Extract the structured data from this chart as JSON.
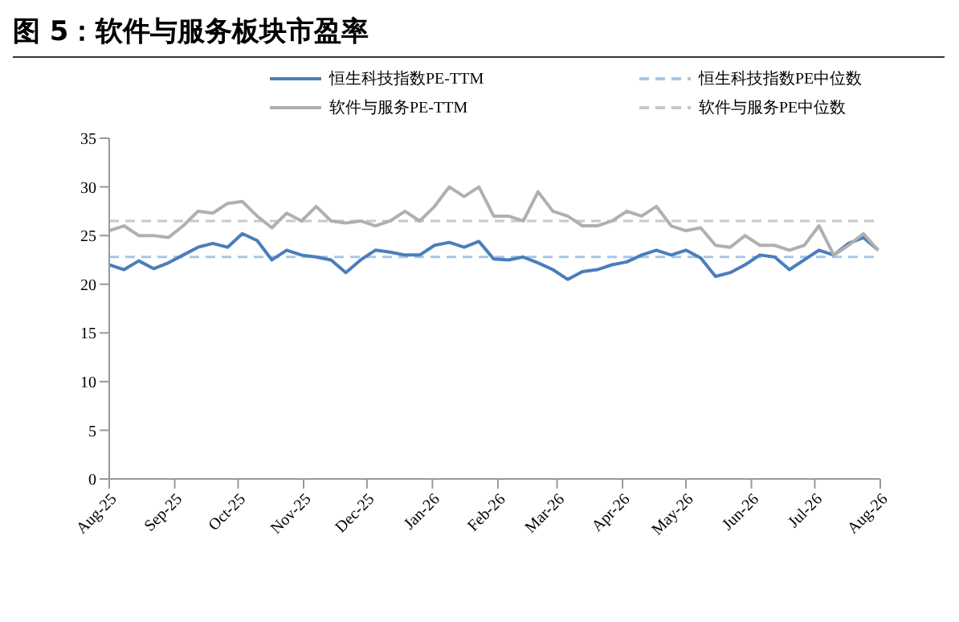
{
  "chart_data": {
    "type": "line",
    "title": "图 5：软件与服务板块市盈率",
    "x": [
      "2025-08-01",
      "2025-08-08",
      "2025-08-15",
      "2025-08-22",
      "2025-08-29",
      "2025-09-05",
      "2025-09-12",
      "2025-09-19",
      "2025-09-26",
      "2025-10-03",
      "2025-10-10",
      "2025-10-17",
      "2025-10-24",
      "2025-10-31",
      "2025-11-07",
      "2025-11-14",
      "2025-11-21",
      "2025-11-28",
      "2025-12-05",
      "2025-12-12",
      "2025-12-19",
      "2025-12-26",
      "2026-01-02",
      "2026-01-09",
      "2026-01-16",
      "2026-01-23",
      "2026-01-30",
      "2026-02-06",
      "2026-02-13",
      "2026-02-20",
      "2026-02-27",
      "2026-03-06",
      "2026-03-13",
      "2026-03-20",
      "2026-03-27",
      "2026-04-03",
      "2026-04-10",
      "2026-04-17",
      "2026-04-24",
      "2026-05-01",
      "2026-05-08",
      "2026-05-15",
      "2026-05-22",
      "2026-05-29",
      "2026-06-05",
      "2026-06-12",
      "2026-06-19",
      "2026-06-26",
      "2026-07-03",
      "2026-07-10",
      "2026-07-17",
      "2026-07-24",
      "2026-07-31"
    ],
    "series": [
      {
        "name": "恒生科技指数PE-TTM",
        "color": "#4a7ebb",
        "values": [
          22,
          21.5,
          22.4,
          21.6,
          22.2,
          23,
          23.8,
          24.2,
          23.8,
          25.2,
          24.5,
          22.5,
          23.5,
          23,
          22.8,
          22.5,
          21.2,
          22.5,
          23.5,
          23.3,
          23,
          23,
          24,
          24.3,
          23.8,
          24.4,
          22.6,
          22.5,
          22.8,
          22.2,
          21.5,
          20.5,
          21.3,
          21.5,
          22,
          22.3,
          23,
          23.5,
          23,
          23.5,
          22.7,
          20.8,
          21.2,
          22,
          23,
          22.8,
          21.5,
          22.5,
          23.5,
          23,
          24.2,
          24.8,
          23.5
        ]
      },
      {
        "name": "软件与服务PE-TTM",
        "color": "#b0b0b0",
        "values": [
          25.5,
          26,
          25,
          25,
          24.8,
          26,
          27.5,
          27.3,
          28.3,
          28.5,
          27,
          25.8,
          27.3,
          26.5,
          28,
          26.5,
          26.3,
          26.5,
          26,
          26.5,
          27.5,
          26.5,
          28,
          30,
          29,
          30,
          27,
          27,
          26.5,
          29.5,
          27.5,
          27,
          26,
          26,
          26.5,
          27.5,
          27,
          28,
          26,
          25.5,
          25.8,
          24,
          23.8,
          25,
          24,
          24,
          23.5,
          24,
          26,
          23,
          24,
          25.2,
          23.5
        ]
      }
    ],
    "ref_lines": [
      {
        "axis": "y",
        "value": 22.8,
        "label": "恒生科技指数PE中位数",
        "color": "#a9c6e8",
        "line_style": "dashed"
      },
      {
        "axis": "y",
        "value": 26.5,
        "label": "软件与服务PE中位数",
        "color": "#c8c8c8",
        "line_style": "dashed"
      }
    ],
    "xlim": [
      "2025-08-01",
      "2026-08-01"
    ],
    "xticks": [
      {
        "value": "2025-08-01",
        "label": "Aug-25"
      },
      {
        "value": "2025-09-01",
        "label": "Sep-25"
      },
      {
        "value": "2025-10-01",
        "label": "Oct-25"
      },
      {
        "value": "2025-11-01",
        "label": "Nov-25"
      },
      {
        "value": "2025-12-01",
        "label": "Dec-25"
      },
      {
        "value": "2026-01-01",
        "label": "Jan-26"
      },
      {
        "value": "2026-02-01",
        "label": "Feb-26"
      },
      {
        "value": "2026-03-01",
        "label": "Mar-26"
      },
      {
        "value": "2026-04-01",
        "label": "Apr-26"
      },
      {
        "value": "2026-05-01",
        "label": "May-26"
      },
      {
        "value": "2026-06-01",
        "label": "Jun-26"
      },
      {
        "value": "2026-07-01",
        "label": "Jul-26"
      },
      {
        "value": "2026-08-01",
        "label": "Aug-26"
      }
    ],
    "ylim": [
      0,
      35
    ],
    "yticks": [
      0,
      5,
      10,
      15,
      20,
      25,
      30,
      35
    ],
    "legend": "top",
    "grid": false,
    "marker": "none",
    "line_style": "solid"
  }
}
